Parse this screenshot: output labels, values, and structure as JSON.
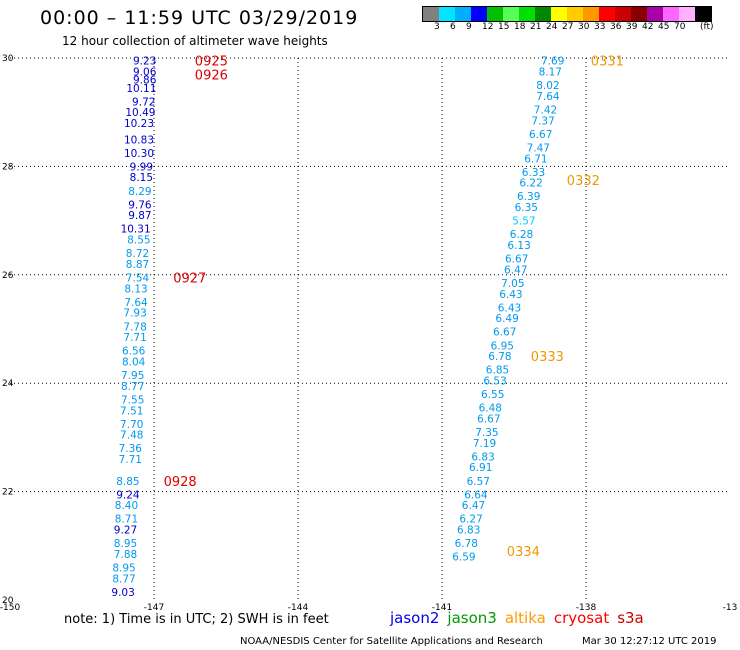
{
  "header": {
    "title": "00:00 – 11:59 UTC 03/29/2019",
    "subtitle": "12 hour collection of altimeter wave heights"
  },
  "color_scale": {
    "colors": [
      "#808080",
      "#00e5ff",
      "#00b0ff",
      "#0000ff",
      "#00c000",
      "#55ff55",
      "#00e000",
      "#008800",
      "#ffff00",
      "#ffcc00",
      "#ff9900",
      "#ff0000",
      "#cc0000",
      "#880000",
      "#aa00aa",
      "#ff66ff",
      "#ffb0ff",
      "#000000"
    ],
    "labels": [
      "3",
      "6",
      "9",
      "12",
      "15",
      "18",
      "21",
      "24",
      "27",
      "30",
      "33",
      "36",
      "39",
      "42",
      "45",
      "70"
    ],
    "unit": "(ft)"
  },
  "axes": {
    "x_ticks": [
      "-150",
      "-147",
      "-144",
      "-141",
      "-138",
      "-13"
    ],
    "y_ticks": [
      "30",
      "28",
      "26",
      "24",
      "22",
      "20"
    ]
  },
  "chart_data": {
    "type": "scatter",
    "x_range": [
      -150,
      -135
    ],
    "y_range": [
      20,
      30
    ],
    "tracks": [
      {
        "name": "track-1",
        "points": [
          {
            "lon": -146.95,
            "lat": 29.95,
            "v": "9.23",
            "c": "#0000cc"
          },
          {
            "lon": -146.95,
            "lat": 29.75,
            "v": "9.06",
            "c": "#0000cc"
          },
          {
            "lon": -146.95,
            "lat": 29.6,
            "v": "9.86",
            "c": "#0000cc"
          },
          {
            "lon": -146.95,
            "lat": 29.45,
            "v": "10.11",
            "c": "#0000cc"
          },
          {
            "lon": -146.97,
            "lat": 29.2,
            "v": "9.72",
            "c": "#0000cc"
          },
          {
            "lon": -146.97,
            "lat": 29.0,
            "v": "10.49",
            "c": "#0000cc"
          },
          {
            "lon": -147.0,
            "lat": 28.8,
            "v": "10.23",
            "c": "#0000cc"
          },
          {
            "lon": -147.0,
            "lat": 28.5,
            "v": "10.83",
            "c": "#0000cc"
          },
          {
            "lon": -147.0,
            "lat": 28.25,
            "v": "10.30",
            "c": "#0000cc"
          },
          {
            "lon": -147.02,
            "lat": 28.0,
            "v": "9.99",
            "c": "#0000cc"
          },
          {
            "lon": -147.02,
            "lat": 27.8,
            "v": "8.15",
            "c": "#0000cc"
          },
          {
            "lon": -147.05,
            "lat": 27.55,
            "v": "8.29",
            "c": "#0099ee"
          },
          {
            "lon": -147.05,
            "lat": 27.3,
            "v": "9.76",
            "c": "#0000cc"
          },
          {
            "lon": -147.05,
            "lat": 27.1,
            "v": "9.87",
            "c": "#0000cc"
          },
          {
            "lon": -147.07,
            "lat": 26.85,
            "v": "10.31",
            "c": "#0000cc"
          },
          {
            "lon": -147.07,
            "lat": 26.65,
            "v": "8.55",
            "c": "#0099ee"
          },
          {
            "lon": -147.1,
            "lat": 26.4,
            "v": "8.72",
            "c": "#0099ee"
          },
          {
            "lon": -147.1,
            "lat": 26.2,
            "v": "8.87",
            "c": "#0099ee"
          },
          {
            "lon": -147.1,
            "lat": 25.95,
            "v": "7.54",
            "c": "#0099ee"
          },
          {
            "lon": -147.13,
            "lat": 25.75,
            "v": "8.13",
            "c": "#0099ee"
          },
          {
            "lon": -147.13,
            "lat": 25.5,
            "v": "7.64",
            "c": "#0099ee"
          },
          {
            "lon": -147.15,
            "lat": 25.3,
            "v": "7.93",
            "c": "#0099ee"
          },
          {
            "lon": -147.15,
            "lat": 25.05,
            "v": "7.78",
            "c": "#0099ee"
          },
          {
            "lon": -147.15,
            "lat": 24.85,
            "v": "7.71",
            "c": "#0099ee"
          },
          {
            "lon": -147.18,
            "lat": 24.6,
            "v": "6.56",
            "c": "#0099ee"
          },
          {
            "lon": -147.18,
            "lat": 24.4,
            "v": "8.04",
            "c": "#0099ee"
          },
          {
            "lon": -147.2,
            "lat": 24.15,
            "v": "7.95",
            "c": "#0099ee"
          },
          {
            "lon": -147.2,
            "lat": 23.95,
            "v": "8.77",
            "c": "#0099ee"
          },
          {
            "lon": -147.2,
            "lat": 23.7,
            "v": "7.55",
            "c": "#0099ee"
          },
          {
            "lon": -147.22,
            "lat": 23.5,
            "v": "7.51",
            "c": "#0099ee"
          },
          {
            "lon": -147.22,
            "lat": 23.25,
            "v": "7.70",
            "c": "#0099ee"
          },
          {
            "lon": -147.22,
            "lat": 23.05,
            "v": "7.48",
            "c": "#0099ee"
          },
          {
            "lon": -147.25,
            "lat": 22.8,
            "v": "7.36",
            "c": "#0099ee"
          },
          {
            "lon": -147.25,
            "lat": 22.6,
            "v": "7.71",
            "c": "#0099ee"
          },
          {
            "lon": -147.3,
            "lat": 22.2,
            "v": "8.85",
            "c": "#0099ee"
          },
          {
            "lon": -147.3,
            "lat": 21.95,
            "v": "9.24",
            "c": "#0000cc"
          },
          {
            "lon": -147.33,
            "lat": 21.75,
            "v": "8.40",
            "c": "#0099ee"
          },
          {
            "lon": -147.33,
            "lat": 21.5,
            "v": "8.71",
            "c": "#0099ee"
          },
          {
            "lon": -147.35,
            "lat": 21.3,
            "v": "9.27",
            "c": "#0000cc"
          },
          {
            "lon": -147.35,
            "lat": 21.05,
            "v": "8.95",
            "c": "#0099ee"
          },
          {
            "lon": -147.35,
            "lat": 20.85,
            "v": "7.88",
            "c": "#0099ee"
          },
          {
            "lon": -147.38,
            "lat": 20.6,
            "v": "8.95",
            "c": "#0099ee"
          },
          {
            "lon": -147.38,
            "lat": 20.4,
            "v": "8.77",
            "c": "#0099ee"
          },
          {
            "lon": -147.4,
            "lat": 20.15,
            "v": "9.03",
            "c": "#0000cc"
          }
        ]
      },
      {
        "name": "track-2",
        "points": [
          {
            "lon": -138.45,
            "lat": 29.95,
            "v": "7.69",
            "c": "#0099ee"
          },
          {
            "lon": -138.5,
            "lat": 29.75,
            "v": "8.17",
            "c": "#0099ee"
          },
          {
            "lon": -138.55,
            "lat": 29.5,
            "v": "8.02",
            "c": "#0099ee"
          },
          {
            "lon": -138.55,
            "lat": 29.3,
            "v": "7.64",
            "c": "#0099ee"
          },
          {
            "lon": -138.6,
            "lat": 29.05,
            "v": "7.42",
            "c": "#0099ee"
          },
          {
            "lon": -138.65,
            "lat": 28.85,
            "v": "7.37",
            "c": "#0099ee"
          },
          {
            "lon": -138.7,
            "lat": 28.6,
            "v": "6.67",
            "c": "#0099ee"
          },
          {
            "lon": -138.75,
            "lat": 28.35,
            "v": "7.47",
            "c": "#0099ee"
          },
          {
            "lon": -138.8,
            "lat": 28.15,
            "v": "6.71",
            "c": "#0099ee"
          },
          {
            "lon": -138.85,
            "lat": 27.9,
            "v": "6.33",
            "c": "#0099ee"
          },
          {
            "lon": -138.9,
            "lat": 27.7,
            "v": "6.22",
            "c": "#0099ee"
          },
          {
            "lon": -138.95,
            "lat": 27.45,
            "v": "6.39",
            "c": "#0099ee"
          },
          {
            "lon": -139.0,
            "lat": 27.25,
            "v": "6.35",
            "c": "#0099ee"
          },
          {
            "lon": -139.05,
            "lat": 27.0,
            "v": "5.57",
            "c": "#00ccff"
          },
          {
            "lon": -139.1,
            "lat": 26.75,
            "v": "6.28",
            "c": "#0099ee"
          },
          {
            "lon": -139.15,
            "lat": 26.55,
            "v": "6.13",
            "c": "#0099ee"
          },
          {
            "lon": -139.2,
            "lat": 26.3,
            "v": "6.67",
            "c": "#0099ee"
          },
          {
            "lon": -139.22,
            "lat": 26.1,
            "v": "6.47",
            "c": "#0099ee"
          },
          {
            "lon": -139.28,
            "lat": 25.85,
            "v": "7.05",
            "c": "#0099ee"
          },
          {
            "lon": -139.32,
            "lat": 25.65,
            "v": "6.43",
            "c": "#0099ee"
          },
          {
            "lon": -139.35,
            "lat": 25.4,
            "v": "6.43",
            "c": "#0099ee"
          },
          {
            "lon": -139.4,
            "lat": 25.2,
            "v": "6.49",
            "c": "#0099ee"
          },
          {
            "lon": -139.45,
            "lat": 24.95,
            "v": "6.67",
            "c": "#0099ee"
          },
          {
            "lon": -139.5,
            "lat": 24.7,
            "v": "6.95",
            "c": "#0099ee"
          },
          {
            "lon": -139.55,
            "lat": 24.5,
            "v": "6.78",
            "c": "#0099ee"
          },
          {
            "lon": -139.6,
            "lat": 24.25,
            "v": "6.85",
            "c": "#0099ee"
          },
          {
            "lon": -139.65,
            "lat": 24.05,
            "v": "6.53",
            "c": "#0099ee"
          },
          {
            "lon": -139.7,
            "lat": 23.8,
            "v": "6.55",
            "c": "#0099ee"
          },
          {
            "lon": -139.75,
            "lat": 23.55,
            "v": "6.48",
            "c": "#0099ee"
          },
          {
            "lon": -139.78,
            "lat": 23.35,
            "v": "6.67",
            "c": "#0099ee"
          },
          {
            "lon": -139.82,
            "lat": 23.1,
            "v": "7.35",
            "c": "#0099ee"
          },
          {
            "lon": -139.87,
            "lat": 22.9,
            "v": "7.19",
            "c": "#0099ee"
          },
          {
            "lon": -139.9,
            "lat": 22.65,
            "v": "6.83",
            "c": "#0099ee"
          },
          {
            "lon": -139.95,
            "lat": 22.45,
            "v": "6.91",
            "c": "#0099ee"
          },
          {
            "lon": -140.0,
            "lat": 22.2,
            "v": "6.57",
            "c": "#0099ee"
          },
          {
            "lon": -140.05,
            "lat": 21.95,
            "v": "6.64",
            "c": "#0099ee"
          },
          {
            "lon": -140.1,
            "lat": 21.75,
            "v": "6.47",
            "c": "#0099ee"
          },
          {
            "lon": -140.15,
            "lat": 21.5,
            "v": "6.27",
            "c": "#0099ee"
          },
          {
            "lon": -140.2,
            "lat": 21.3,
            "v": "6.83",
            "c": "#0099ee"
          },
          {
            "lon": -140.25,
            "lat": 21.05,
            "v": "6.78",
            "c": "#0099ee"
          },
          {
            "lon": -140.3,
            "lat": 20.8,
            "v": "6.59",
            "c": "#0099ee"
          }
        ]
      }
    ],
    "time_labels": [
      {
        "lon": -146.15,
        "lat": 29.95,
        "t": "0925",
        "c": "#dd0000"
      },
      {
        "lon": -146.15,
        "lat": 29.7,
        "t": "0926",
        "c": "#dd0000"
      },
      {
        "lon": -146.6,
        "lat": 25.95,
        "t": "0927",
        "c": "#dd0000"
      },
      {
        "lon": -146.8,
        "lat": 22.2,
        "t": "0928",
        "c": "#dd0000"
      },
      {
        "lon": -137.9,
        "lat": 29.95,
        "t": "0331",
        "c": "#ee9900"
      },
      {
        "lon": -138.4,
        "lat": 27.75,
        "t": "0332",
        "c": "#ee9900"
      },
      {
        "lon": -139.15,
        "lat": 24.5,
        "t": "0333",
        "c": "#ee9900"
      },
      {
        "lon": -139.65,
        "lat": 20.9,
        "t": "0334",
        "c": "#ee9900"
      }
    ]
  },
  "footer": {
    "note": "note: 1) Time is in UTC; 2) SWH is in feet",
    "satellites": [
      {
        "name": "jason2",
        "color": "#0000ee"
      },
      {
        "name": "jason3",
        "color": "#009900"
      },
      {
        "name": "altika",
        "color": "#ff9900"
      },
      {
        "name": "cryosat",
        "color": "#ff0000"
      },
      {
        "name": "s3a",
        "color": "#cc0000"
      }
    ],
    "credit": "NOAA/NESDIS Center for Satellite Applications and Research",
    "timestamp": "Mar 30 12:27:12 UTC 2019"
  }
}
